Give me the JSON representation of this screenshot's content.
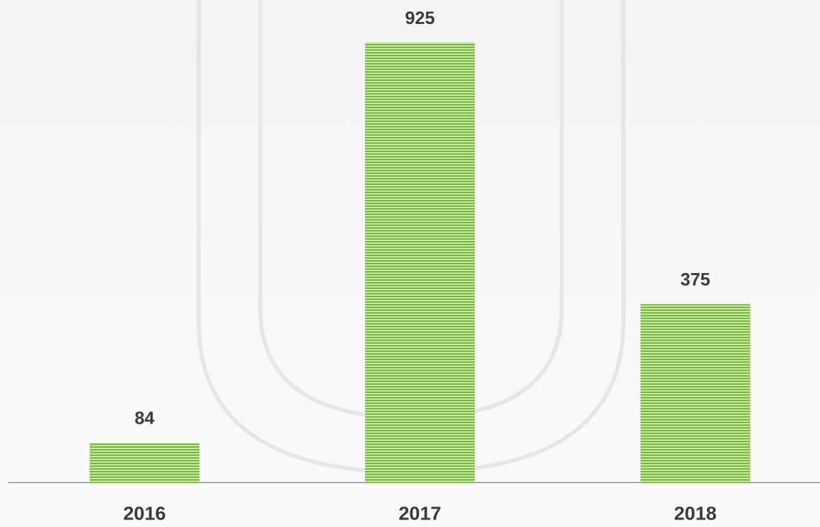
{
  "chart_data": {
    "type": "bar",
    "categories": [
      "2016",
      "2017",
      "2018"
    ],
    "values": [
      84,
      925,
      375
    ],
    "color": "#79b43f"
  }
}
